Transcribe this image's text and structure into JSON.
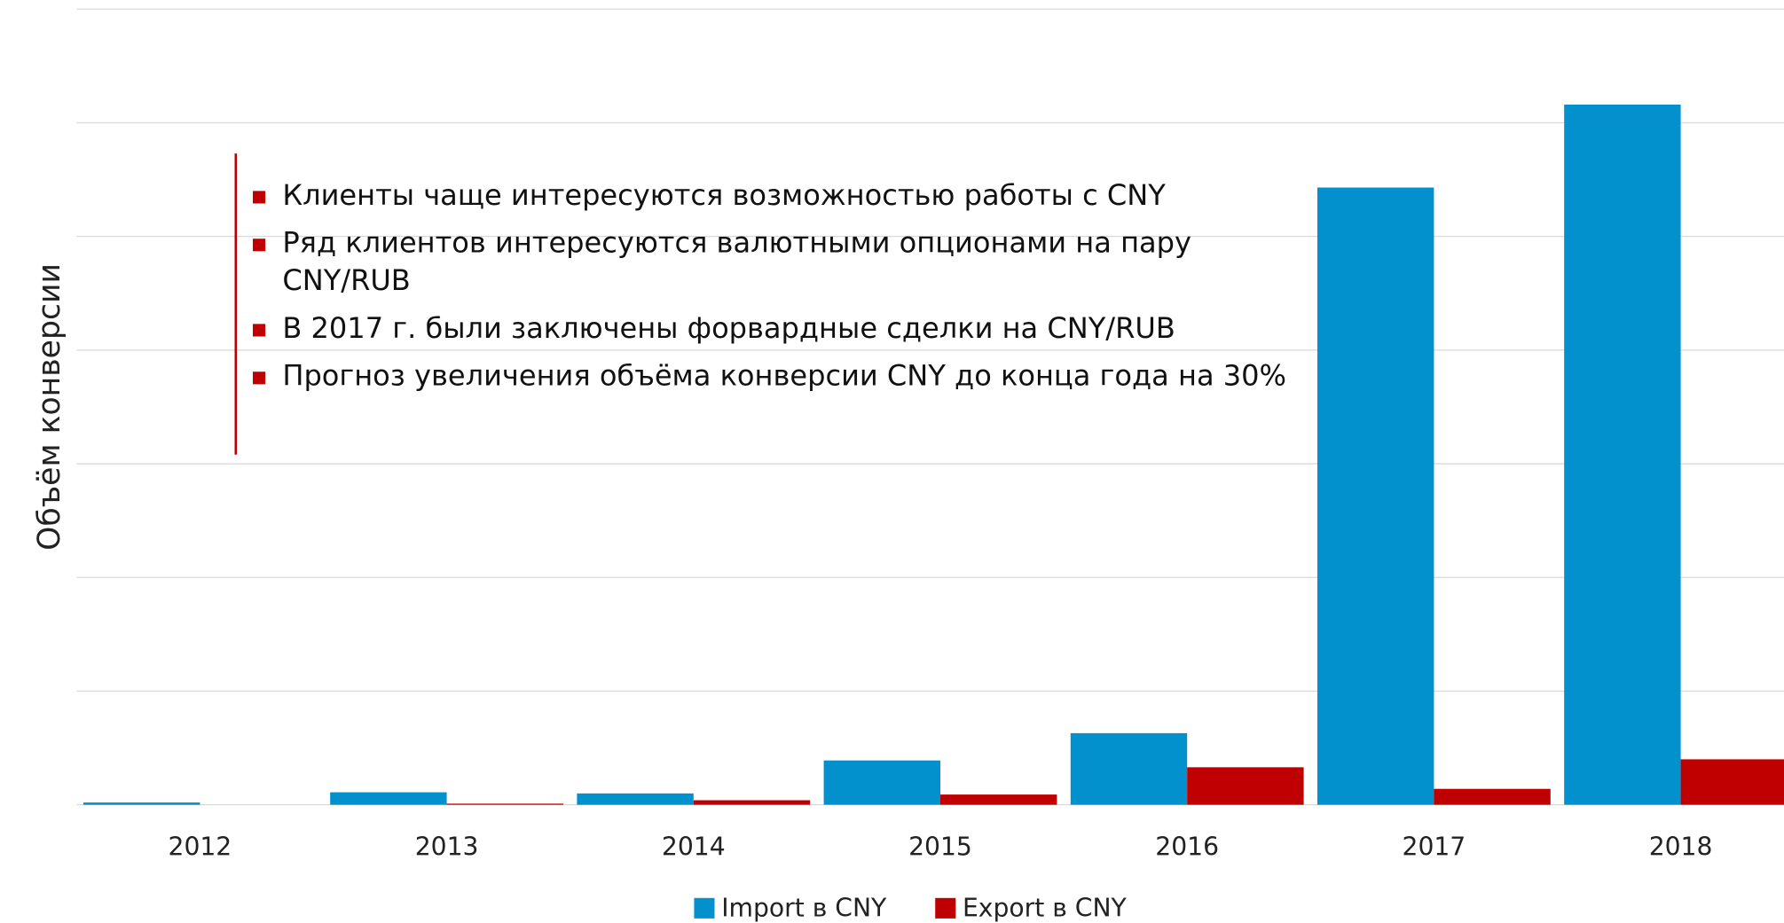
{
  "chart_data": {
    "type": "bar",
    "y_label": "Объём конверсии",
    "categories": [
      "2012",
      "2013",
      "2014",
      "2015",
      "2016",
      "2017",
      "2018"
    ],
    "series": [
      {
        "name": "Import в CNY",
        "color": "#0391cd",
        "values": [
          0.02,
          0.11,
          0.1,
          0.39,
          0.63,
          5.43,
          6.16
        ]
      },
      {
        "name": "Export в CNY",
        "color": "#c00000",
        "values": [
          0,
          0.01,
          0.04,
          0.09,
          0.33,
          0.14,
          0.4
        ]
      }
    ],
    "ylim": [
      0,
      7
    ],
    "yticks": [
      0,
      1,
      2,
      3,
      4,
      5,
      6,
      7
    ],
    "grid": true,
    "legend": "bottom",
    "annotations": [
      "Клиенты чаще интересуются возможностью работы с CNY",
      "Ряд клиентов интересуются валютными опционами на пару CNY/RUB",
      "В 2017 г. были заключены форвардные сделки на CNY/RUB",
      "Прогноз увеличения объёма конверсии CNY до конца года на 30%"
    ]
  }
}
